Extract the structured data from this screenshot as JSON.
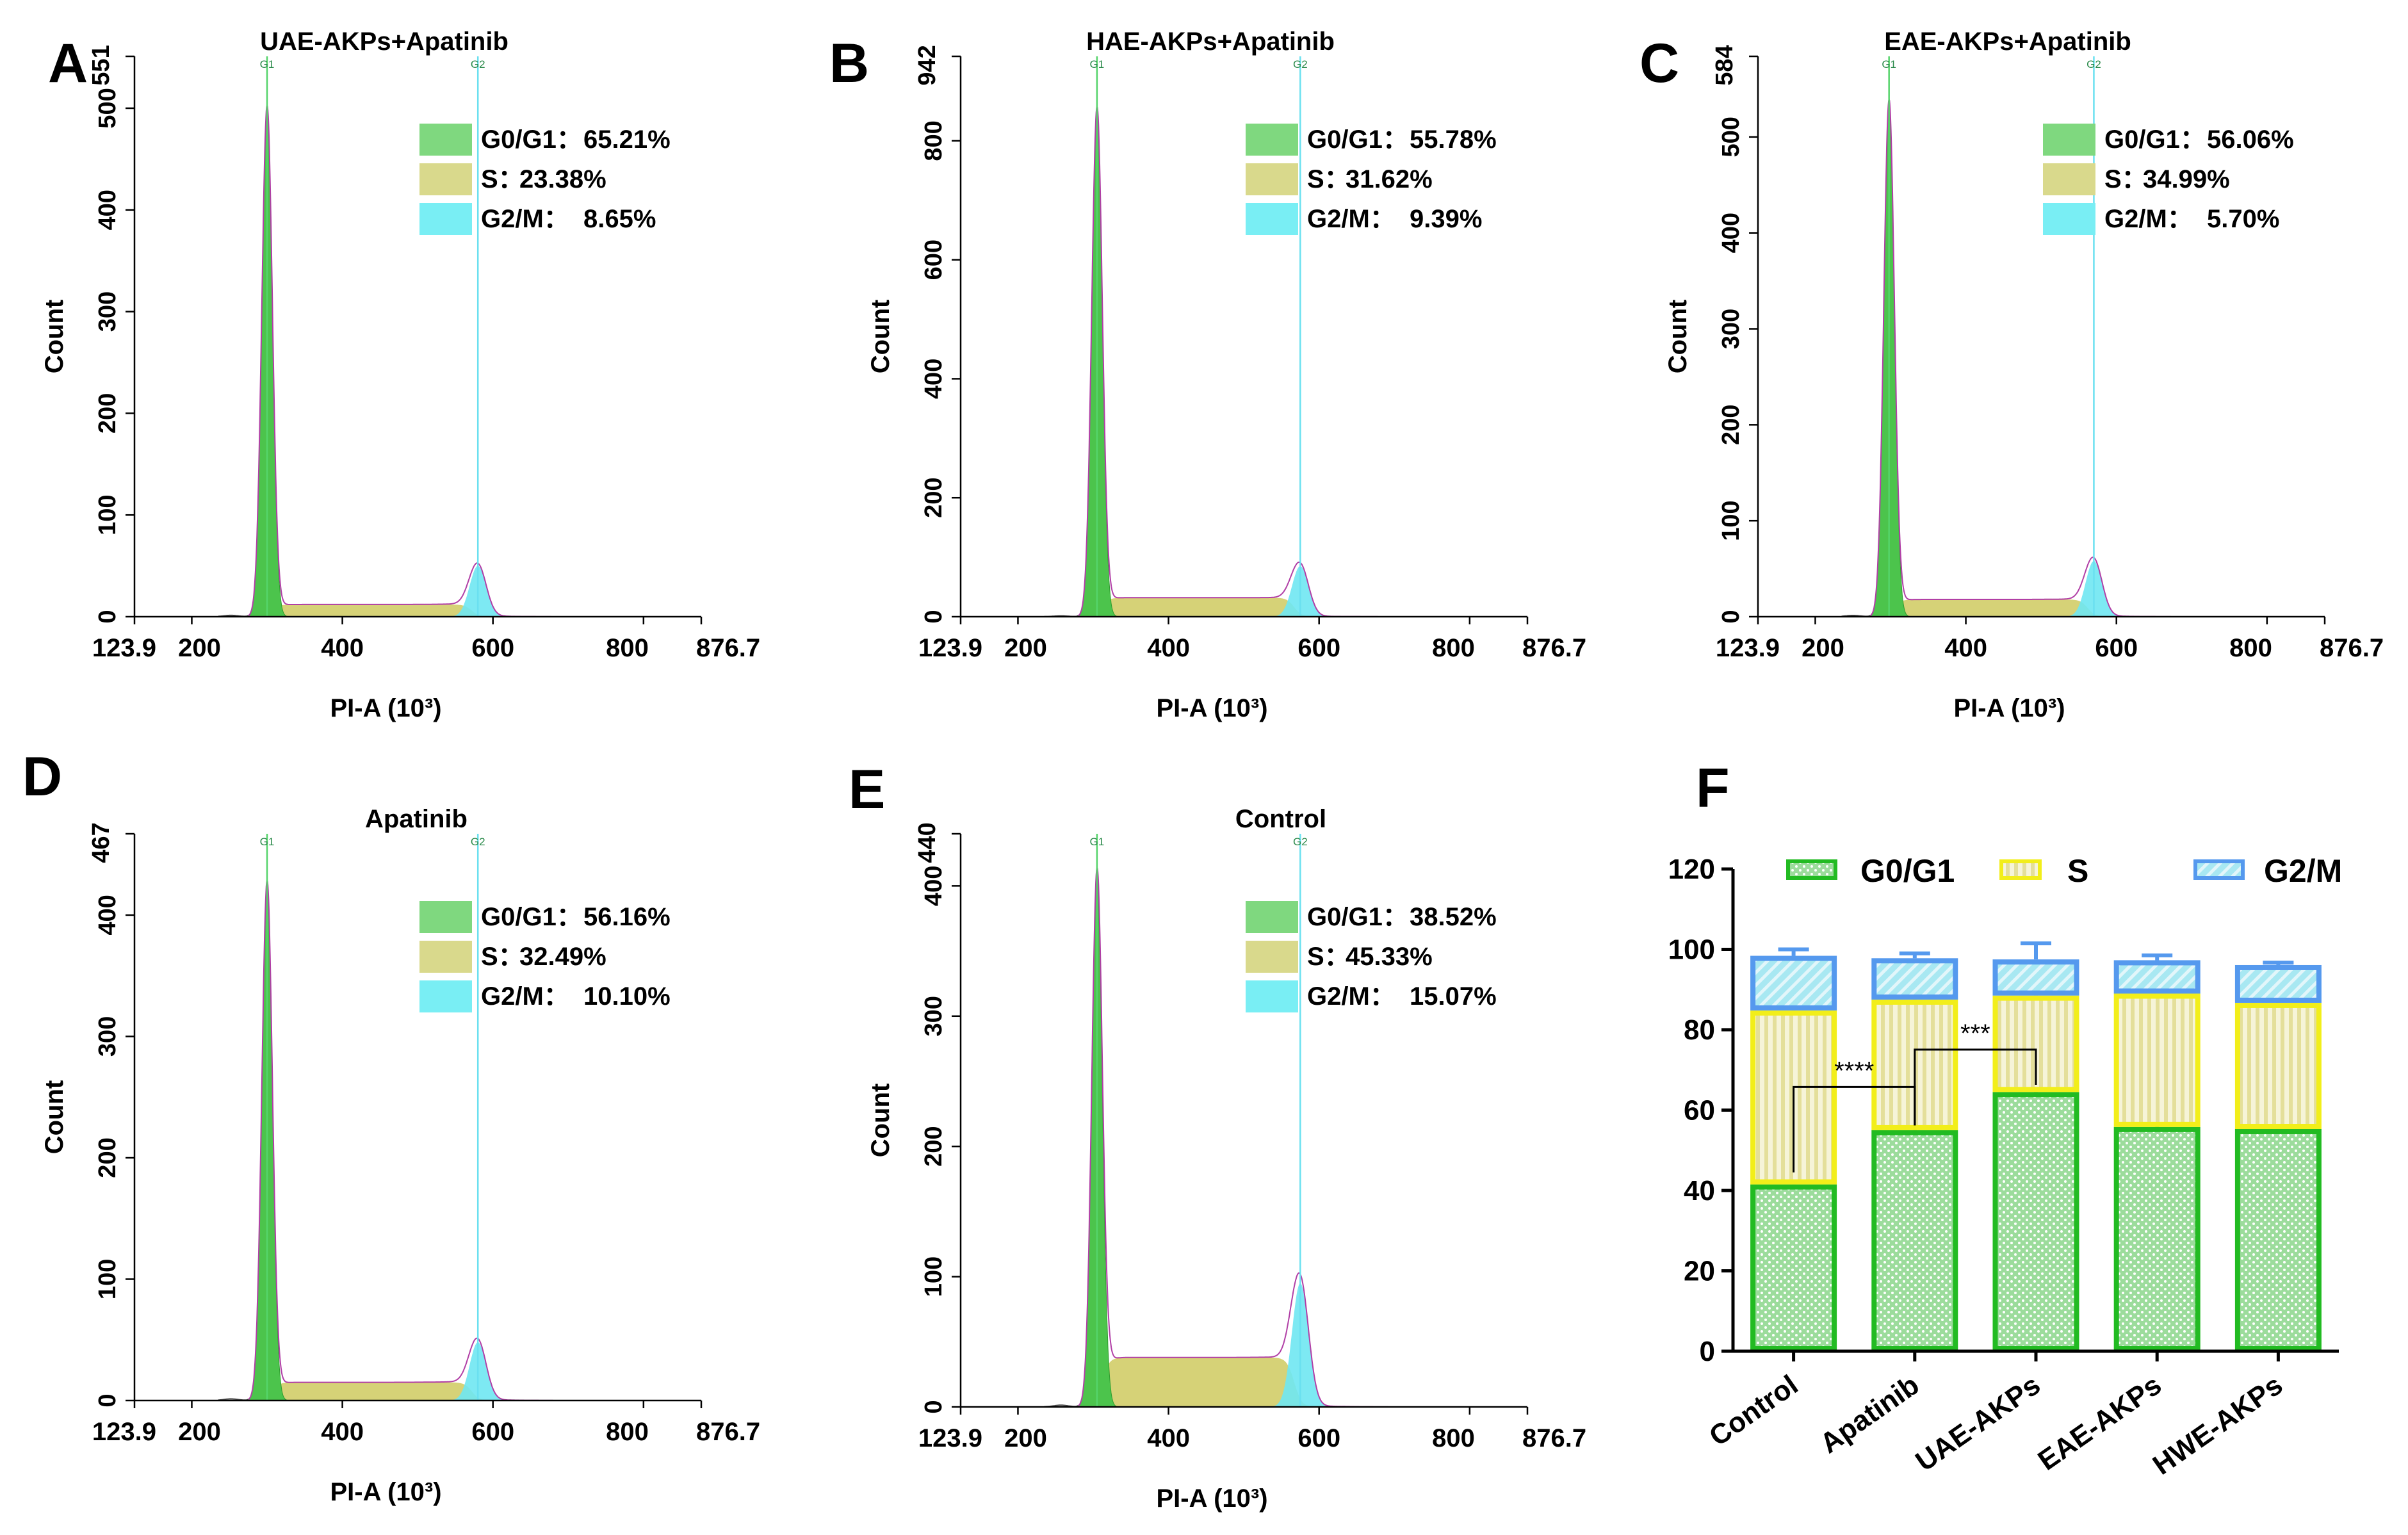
{
  "chart_data": [
    {
      "panel": "A",
      "type": "histogram",
      "title": "UAE-AKPs+Apatinib",
      "ylabel": "Count",
      "xlabel": "PI-A (10³)",
      "x_range": [
        123.9,
        876.7
      ],
      "x_ticks": [
        "123.9",
        "200",
        "400",
        "600",
        "800",
        "876.7"
      ],
      "y_max": 551,
      "y_ticks": [
        0,
        100,
        200,
        300,
        400,
        500
      ],
      "peak_labels": [
        "G1",
        "G2"
      ],
      "g1_position": 300,
      "g1_height": 500,
      "g2_position": 580,
      "g2_height": 50,
      "s_plateau": 12,
      "legend": [
        {
          "label": "G0/G1：",
          "value": "65.21%"
        },
        {
          "label": "S：",
          "value": "23.38%"
        },
        {
          "label": "G2/M：",
          "value": "8.65%"
        }
      ]
    },
    {
      "panel": "B",
      "type": "histogram",
      "title": "HAE-AKPs+Apatinib",
      "ylabel": "Count",
      "xlabel": "PI-A (10³)",
      "x_range": [
        123.9,
        876.7
      ],
      "x_ticks": [
        "123.9",
        "200",
        "400",
        "600",
        "800",
        "876.7"
      ],
      "y_max": 942,
      "y_ticks": [
        0,
        200,
        400,
        600,
        800
      ],
      "peak_labels": [
        "G1",
        "G2"
      ],
      "g1_position": 305,
      "g1_height": 850,
      "g2_position": 575,
      "g2_height": 85,
      "s_plateau": 32,
      "legend": [
        {
          "label": "G0/G1：",
          "value": "55.78%"
        },
        {
          "label": "S：",
          "value": "31.62%"
        },
        {
          "label": "G2/M：",
          "value": "9.39%"
        }
      ]
    },
    {
      "panel": "C",
      "type": "histogram",
      "title": "EAE-AKPs+Apatinib",
      "ylabel": "Count",
      "xlabel": "PI-A (10³)",
      "x_range": [
        123.9,
        876.7
      ],
      "x_ticks": [
        "123.9",
        "200",
        "400",
        "600",
        "800",
        "876.7"
      ],
      "y_max": 584,
      "y_ticks": [
        0,
        100,
        200,
        300,
        400,
        500
      ],
      "peak_labels": [
        "G1",
        "G2"
      ],
      "g1_position": 298,
      "g1_height": 535,
      "g2_position": 570,
      "g2_height": 58,
      "s_plateau": 18,
      "legend": [
        {
          "label": "G0/G1：",
          "value": "56.06%"
        },
        {
          "label": "S：",
          "value": "34.99%"
        },
        {
          "label": "G2/M：",
          "value": "5.70%"
        }
      ]
    },
    {
      "panel": "D",
      "type": "histogram",
      "title": "Apatinib",
      "ylabel": "Count",
      "xlabel": "PI-A (10³)",
      "x_range": [
        123.9,
        876.7
      ],
      "x_ticks": [
        "123.9",
        "200",
        "400",
        "600",
        "800",
        "876.7"
      ],
      "y_max": 467,
      "y_ticks": [
        0,
        100,
        200,
        300,
        400
      ],
      "peak_labels": [
        "G1",
        "G2"
      ],
      "g1_position": 300,
      "g1_height": 425,
      "g2_position": 580,
      "g2_height": 48,
      "s_plateau": 15,
      "legend": [
        {
          "label": "G0/G1：",
          "value": "56.16%"
        },
        {
          "label": "S：",
          "value": "32.49%"
        },
        {
          "label": "G2/M：",
          "value": "10.10%"
        }
      ]
    },
    {
      "panel": "E",
      "type": "histogram",
      "title": "Control",
      "ylabel": "Count",
      "xlabel": "PI-A (10³)",
      "x_range": [
        123.9,
        876.7
      ],
      "x_ticks": [
        "123.9",
        "200",
        "400",
        "600",
        "800",
        "876.7"
      ],
      "y_max": 440,
      "y_ticks": [
        0,
        100,
        200,
        300,
        400
      ],
      "peak_labels": [
        "G1",
        "G2"
      ],
      "g1_position": 305,
      "g1_height": 405,
      "g2_position": 575,
      "g2_height": 95,
      "s_plateau": 38,
      "legend": [
        {
          "label": "G0/G1：",
          "value": "38.52%"
        },
        {
          "label": "S：",
          "value": "45.33%"
        },
        {
          "label": "G2/M：",
          "value": "15.07%"
        }
      ]
    },
    {
      "panel": "F",
      "type": "bar",
      "stacked": true,
      "categories": [
        "Control",
        "Apatinib",
        "UAE-AKPs",
        "EAE-AKPs",
        "HWE-AKPs"
      ],
      "series": [
        {
          "name": "G0/G1",
          "values": [
            41.5,
            55.0,
            64.5,
            55.8,
            55.3
          ],
          "errors": [
            3.0,
            1.2,
            1.8,
            0.8,
            0.9
          ]
        },
        {
          "name": "S",
          "values": [
            43.3,
            32.5,
            24.0,
            33.2,
            31.4
          ],
          "errors": [
            2.0,
            0.9,
            2.0,
            1.0,
            0.8
          ]
        },
        {
          "name": "G2/M",
          "values": [
            13.6,
            10.3,
            9.0,
            8.3,
            9.4
          ],
          "errors": [
            1.6,
            1.2,
            4.0,
            1.2,
            0.6
          ]
        }
      ],
      "ylim": [
        0,
        120
      ],
      "y_ticks": [
        0,
        20,
        40,
        60,
        80,
        100,
        120
      ],
      "legend_position": "top",
      "significance": [
        {
          "from": "Control",
          "to": "Apatinib",
          "label": "****"
        },
        {
          "from": "Apatinib",
          "to": "UAE-AKPs",
          "label": "***"
        }
      ]
    }
  ]
}
